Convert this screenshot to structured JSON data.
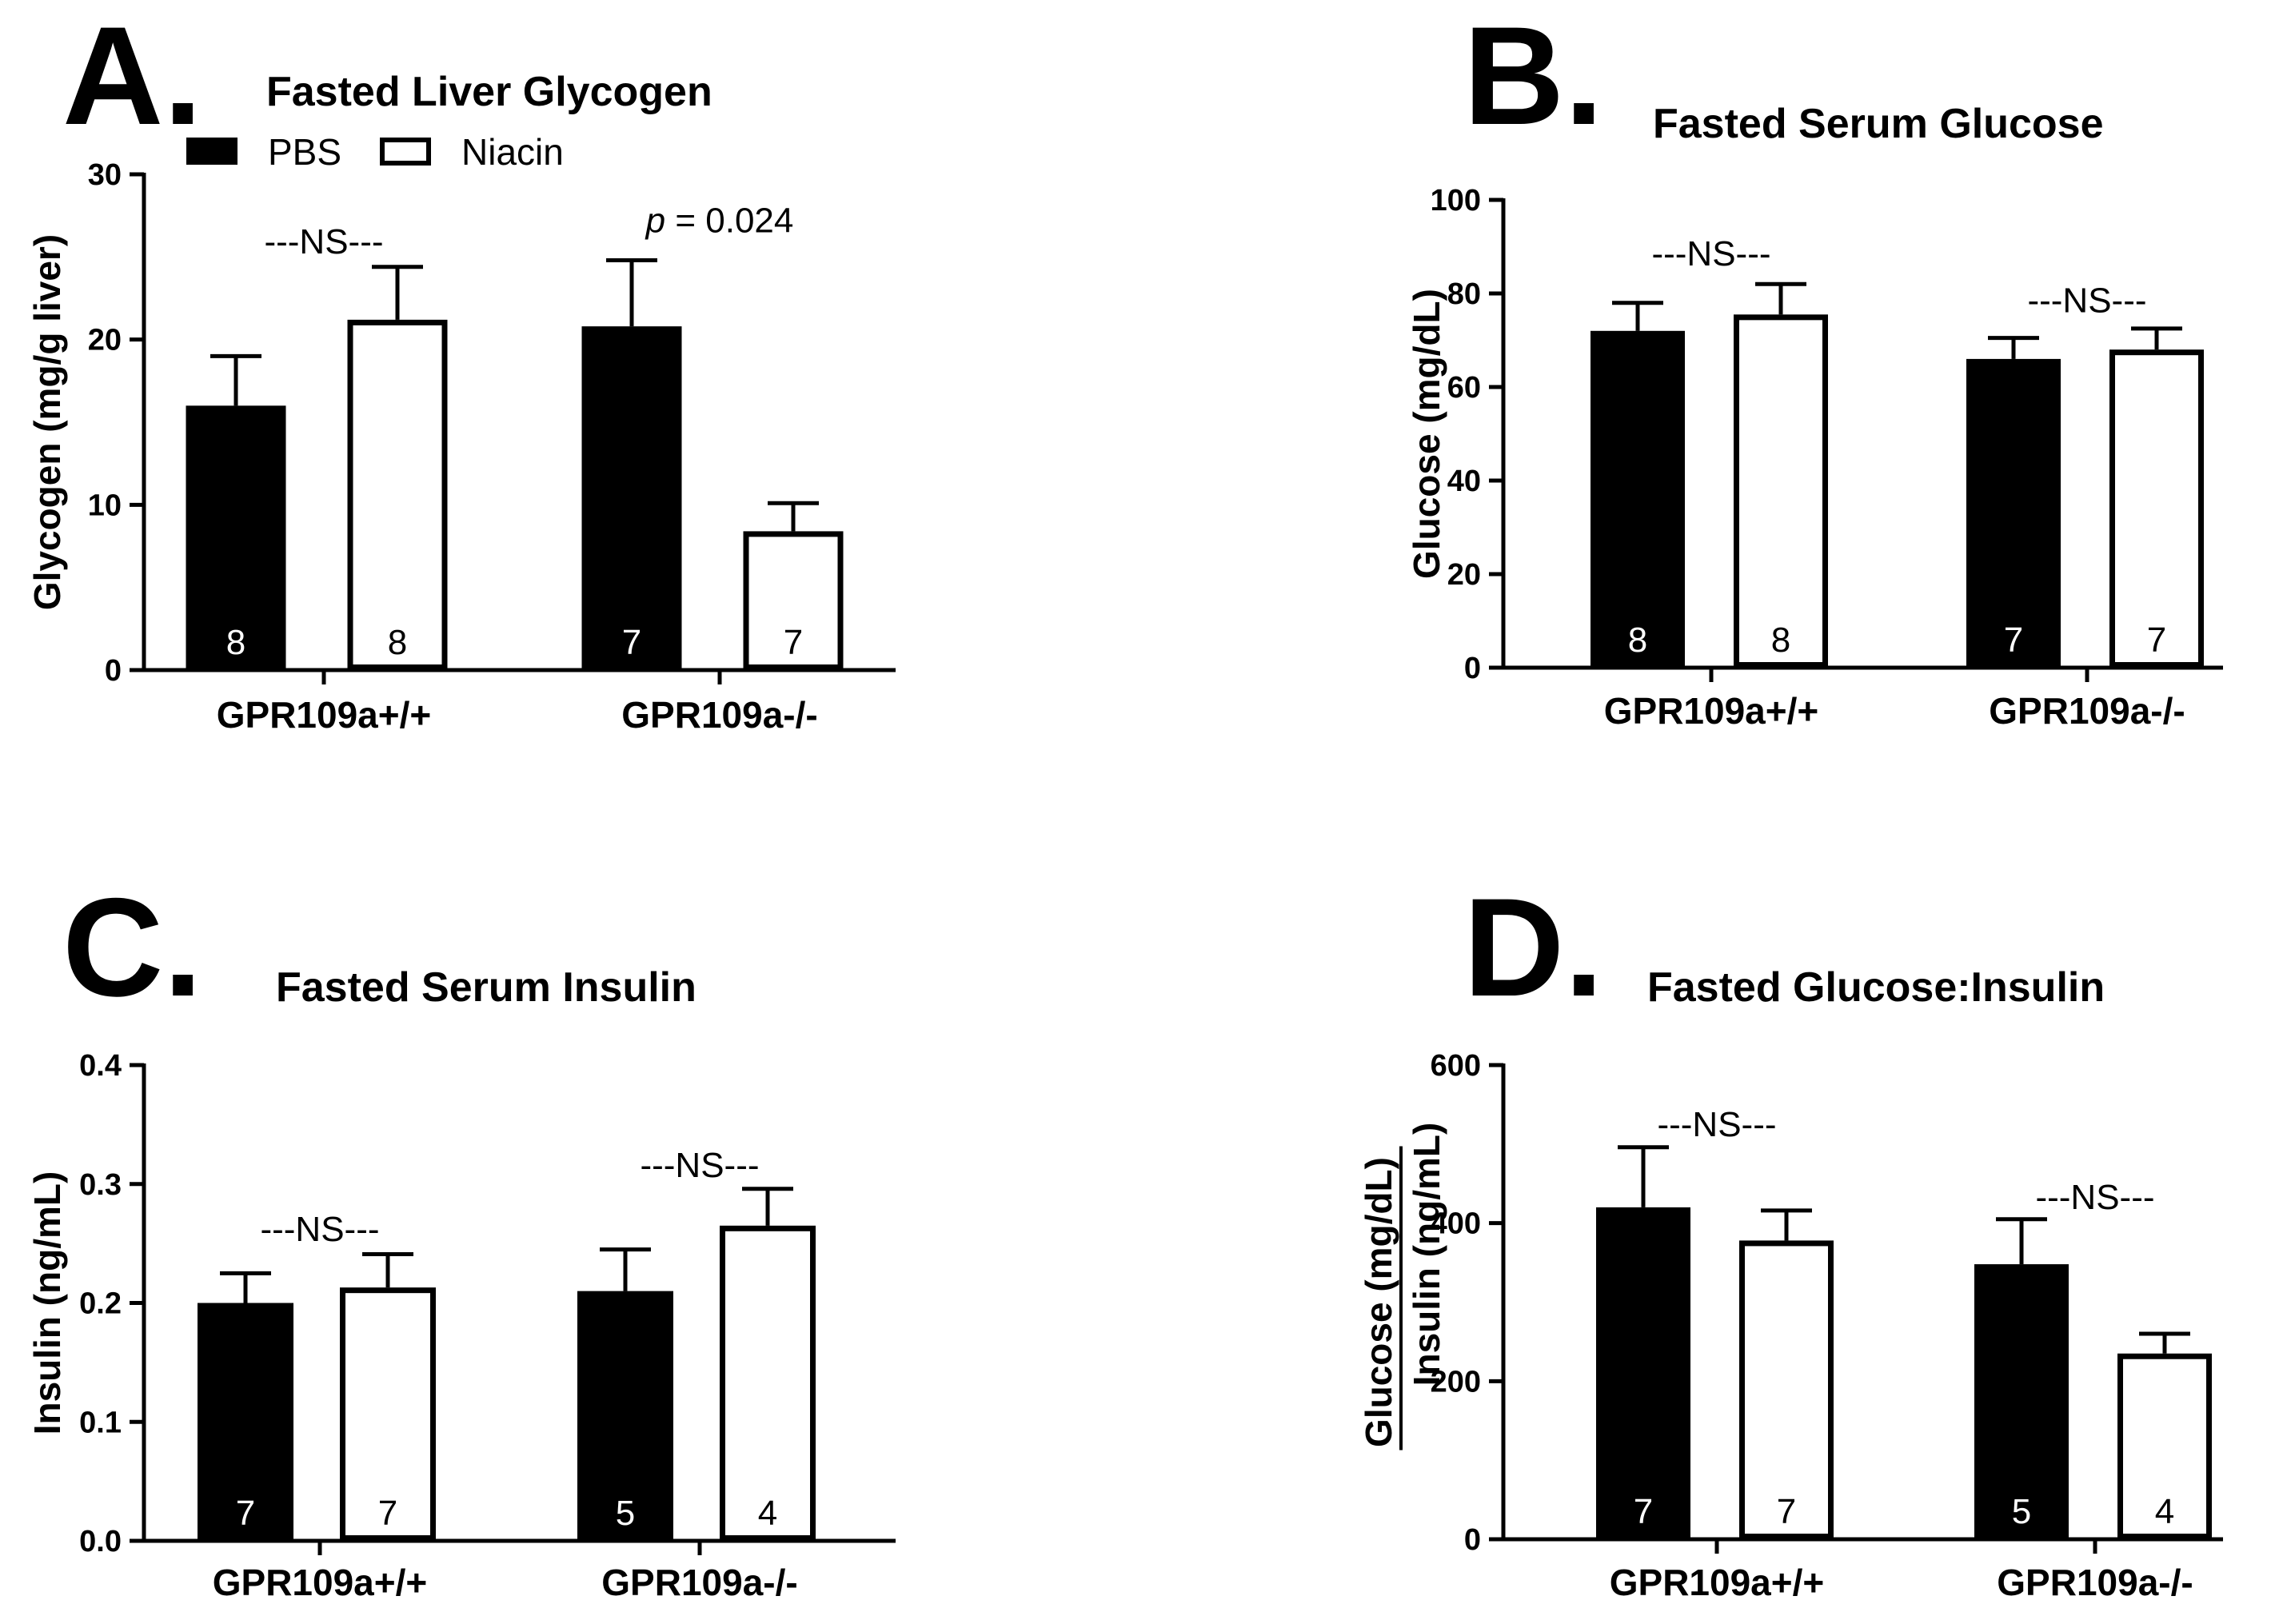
{
  "figure": {
    "legend": {
      "pbs": "PBS",
      "niacin": "Niacin"
    }
  },
  "chart_data": [
    {
      "type": "bar",
      "panel": "A.",
      "title": "Fasted Liver Glycogen",
      "xlabel": "",
      "ylabel": "Glycogen (mg/g liver)",
      "ylim": [
        0,
        30
      ],
      "yticks": [
        "0",
        "10",
        "20",
        "30"
      ],
      "categories": [
        "GPR109a+/+",
        "GPR109a-/-"
      ],
      "series": [
        {
          "name": "PBS",
          "color": "#000000",
          "values": [
            16.0,
            20.8
          ],
          "errors": [
            3.0,
            4.0
          ],
          "n": [
            "8",
            "7"
          ]
        },
        {
          "name": "Niacin",
          "color": "#ffffff",
          "values": [
            21.2,
            8.4
          ],
          "errors": [
            3.2,
            1.7
          ],
          "n": [
            "8",
            "7"
          ]
        }
      ],
      "annotations": [
        {
          "group": 0,
          "text": "---NS---",
          "y": 25.2,
          "italic_prefix": ""
        },
        {
          "group": 1,
          "text": " = 0.024",
          "y": 26.5,
          "italic_prefix": "p"
        }
      ]
    },
    {
      "type": "bar",
      "panel": "B.",
      "title": "Fasted Serum Glucose",
      "xlabel": "",
      "ylabel": "Glucose (mg/dL)",
      "ylim": [
        0,
        100
      ],
      "yticks": [
        "0",
        "20",
        "40",
        "60",
        "80",
        "100"
      ],
      "categories": [
        "GPR109a+/+",
        "GPR109a-/-"
      ],
      "series": [
        {
          "name": "PBS",
          "color": "#000000",
          "values": [
            72,
            66
          ],
          "errors": [
            6,
            4.5
          ],
          "n": [
            "8",
            "7"
          ]
        },
        {
          "name": "Niacin",
          "color": "#ffffff",
          "values": [
            75.5,
            68
          ],
          "errors": [
            6.5,
            4.5
          ],
          "n": [
            "8",
            "7"
          ]
        }
      ],
      "annotations": [
        {
          "group": 0,
          "text": "---NS---",
          "y": 86,
          "italic_prefix": ""
        },
        {
          "group": 1,
          "text": "---NS---",
          "y": 76,
          "italic_prefix": ""
        }
      ]
    },
    {
      "type": "bar",
      "panel": "C.",
      "title": "Fasted Serum Insulin",
      "xlabel": "",
      "ylabel": "Insulin (ng/mL)",
      "ylim": [
        0,
        0.4
      ],
      "yticks": [
        "0.0",
        "0.1",
        "0.2",
        "0.3",
        "0.4"
      ],
      "categories": [
        "GPR109a+/+",
        "GPR109a-/-"
      ],
      "series": [
        {
          "name": "PBS",
          "color": "#000000",
          "values": [
            0.2,
            0.21
          ],
          "errors": [
            0.025,
            0.035
          ],
          "n": [
            "7",
            "5"
          ]
        },
        {
          "name": "Niacin",
          "color": "#ffffff",
          "values": [
            0.213,
            0.265
          ],
          "errors": [
            0.028,
            0.031
          ],
          "n": [
            "7",
            "4"
          ]
        }
      ],
      "annotations": [
        {
          "group": 0,
          "text": "---NS---",
          "y": 0.252,
          "italic_prefix": ""
        },
        {
          "group": 1,
          "text": "---NS---",
          "y": 0.306,
          "italic_prefix": ""
        }
      ]
    },
    {
      "type": "bar",
      "panel": "D.",
      "title": "Fasted Glucose:Insulin",
      "xlabel": "",
      "ylabel_numerator_main": "Glucose",
      "ylabel_numerator_unit": "(mg/dL)",
      "ylabel_denominator": "Insulin (ng/mL)",
      "ylim": [
        0,
        600
      ],
      "yticks": [
        "0",
        "200",
        "400",
        "600"
      ],
      "categories": [
        "GPR109a+/+",
        "GPR109a-/-"
      ],
      "series": [
        {
          "name": "PBS",
          "color": "#000000",
          "values": [
            420,
            348
          ],
          "errors": [
            76,
            57
          ],
          "n": [
            "7",
            "5"
          ]
        },
        {
          "name": "Niacin",
          "color": "#ffffff",
          "values": [
            378,
            235
          ],
          "errors": [
            38,
            25
          ],
          "n": [
            "7",
            "4"
          ]
        }
      ],
      "annotations": [
        {
          "group": 0,
          "text": "---NS---",
          "y": 510,
          "italic_prefix": ""
        },
        {
          "group": 1,
          "text": "---NS---",
          "y": 418,
          "italic_prefix": ""
        }
      ]
    }
  ]
}
